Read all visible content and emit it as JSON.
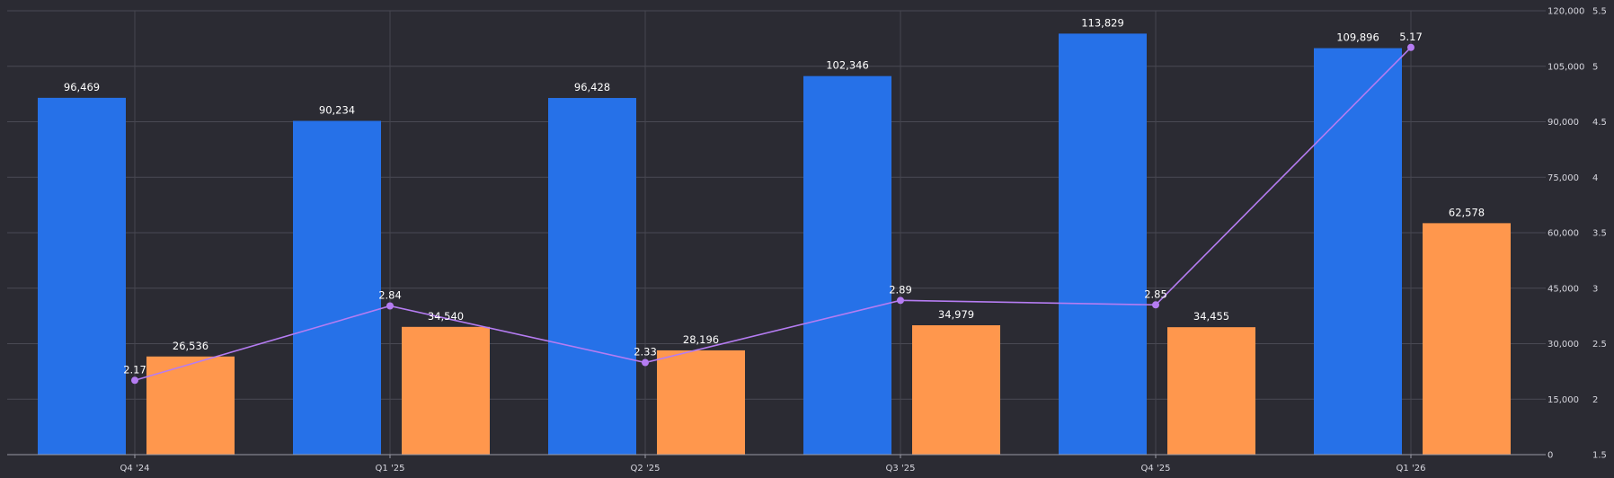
{
  "chart_data": {
    "type": "bar",
    "categories": [
      "Q4 '24",
      "Q1 '25",
      "Q2 '25",
      "Q3 '25",
      "Q4 '25",
      "Q1 '26"
    ],
    "series": [
      {
        "type": "bar",
        "color": "#2671e8",
        "axis": "left",
        "values": [
          96469,
          90234,
          96428,
          102346,
          113829,
          109896
        ],
        "labels": [
          "96,469",
          "90,234",
          "96,428",
          "102,346",
          "113,829",
          "109,896"
        ]
      },
      {
        "type": "bar",
        "color": "#ff974d",
        "axis": "left",
        "values": [
          26536,
          34540,
          28196,
          34979,
          34455,
          62578
        ],
        "labels": [
          "26,536",
          "34,540",
          "28,196",
          "34,979",
          "34,455",
          "62,578"
        ]
      },
      {
        "type": "line",
        "color": "#b57cf2",
        "axis": "right",
        "values": [
          2.17,
          2.84,
          2.33,
          2.89,
          2.85,
          5.17
        ],
        "labels": [
          "2.17",
          "2.84",
          "2.33",
          "2.89",
          "2.85",
          "5.17"
        ]
      }
    ],
    "y_left": {
      "min": 0,
      "max": 120000,
      "ticks": [
        0,
        15000,
        30000,
        45000,
        60000,
        75000,
        90000,
        105000,
        120000
      ],
      "tick_labels": [
        "0",
        "15,000",
        "30,000",
        "45,000",
        "60,000",
        "75,000",
        "90,000",
        "105,000",
        "120,000"
      ]
    },
    "y_right": {
      "min": 1.5,
      "max": 5.5,
      "ticks": [
        1.5,
        2,
        2.5,
        3,
        3.5,
        4,
        4.5,
        5,
        5.5
      ],
      "tick_labels": [
        "1.5",
        "2",
        "2.5",
        "3",
        "3.5",
        "4",
        "4.5",
        "5",
        "5.5"
      ]
    },
    "grid": true,
    "legend": "none"
  }
}
